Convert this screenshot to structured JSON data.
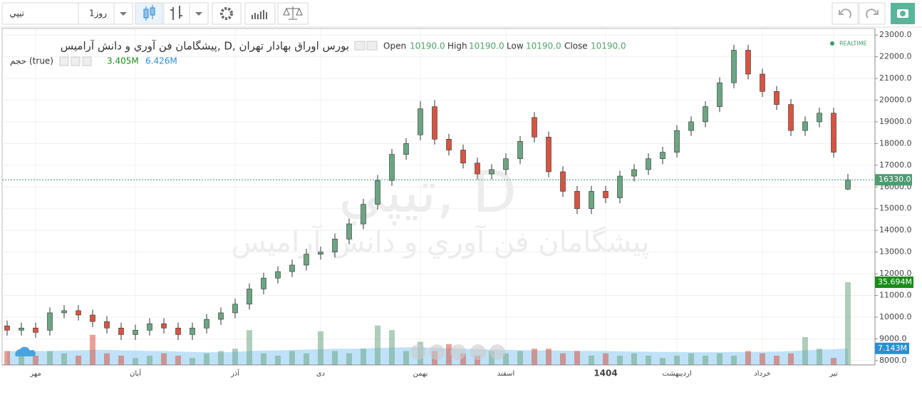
{
  "toolbar": {
    "symbol": "تيپي",
    "interval": "1روز"
  },
  "legend": {
    "title": "پيشگامان فن آوري و دانش آراميس, D, بورس اوراق بهادار تهران",
    "open_label": "Open",
    "open": "10190.0",
    "high_label": "High",
    "high": "10190.0",
    "low_label": "Low",
    "low": "10190.0",
    "close_label": "Close",
    "close": "10190.0",
    "realtime": "REALTIME",
    "volume_title": "حجم (true)",
    "volume_value": "3.405M",
    "volume_ma_value": "6.426M"
  },
  "watermark": {
    "main": "تيپي, D",
    "sub": "پيشگامان فن آوري و دانش آراميس"
  },
  "chart_data": {
    "type": "candlestick",
    "categories": [
      null,
      null,
      "مهر",
      null,
      null,
      null,
      null,
      null,
      null,
      "آبان",
      null,
      null,
      null,
      null,
      null,
      null,
      "آذر",
      null,
      null,
      null,
      null,
      null,
      "دی",
      null,
      null,
      null,
      null,
      null,
      null,
      "بهمن",
      null,
      null,
      null,
      null,
      null,
      "اسفند",
      null,
      null,
      null,
      null,
      null,
      null,
      "1404",
      null,
      null,
      null,
      null,
      "اردیبهشت",
      null,
      null,
      null,
      null,
      null,
      "خرداد",
      null,
      null,
      null,
      null,
      "تیر",
      null
    ],
    "open": [
      9600,
      9400,
      9500,
      9400,
      10200,
      10300,
      10100,
      9800,
      9500,
      9200,
      9400,
      9700,
      9500,
      9200,
      9500,
      9900,
      10200,
      10600,
      11300,
      11800,
      12100,
      12400,
      12900,
      13000,
      13600,
      14300,
      15200,
      16300,
      17500,
      18400,
      19700,
      18200,
      17700,
      17100,
      16600,
      16800,
      17300,
      19200,
      18300,
      16700,
      15800,
      15000,
      15800,
      15500,
      16500,
      16800,
      17300,
      17600,
      18600,
      19000,
      19700,
      20800,
      22300,
      21200,
      20400,
      19800,
      18600,
      19000,
      19400,
      15900
    ],
    "high": [
      9850,
      9750,
      9750,
      10450,
      10550,
      10550,
      10350,
      10050,
      9750,
      9650,
      9950,
      9950,
      9750,
      9750,
      10150,
      10450,
      10850,
      11550,
      12050,
      12350,
      12650,
      13150,
      13250,
      13850,
      14550,
      15450,
      16550,
      17750,
      18250,
      19950,
      20000,
      18450,
      17950,
      17350,
      17050,
      17550,
      18350,
      19450,
      18550,
      16950,
      16050,
      16050,
      16050,
      16750,
      17050,
      17550,
      17850,
      18850,
      19250,
      19950,
      21050,
      22550,
      22550,
      21450,
      20650,
      20050,
      19250,
      19650,
      19650,
      16600
    ],
    "low": [
      9150,
      9150,
      9050,
      9150,
      9950,
      9850,
      9550,
      9250,
      8950,
      8950,
      9150,
      9250,
      8950,
      8950,
      9250,
      9650,
      9950,
      10350,
      11050,
      11550,
      11850,
      12150,
      12650,
      12750,
      13350,
      14050,
      14950,
      16050,
      17250,
      18150,
      17950,
      17450,
      16850,
      16350,
      16350,
      16550,
      17050,
      18050,
      16450,
      15550,
      14750,
      14750,
      15250,
      15250,
      16250,
      16550,
      17050,
      17350,
      18350,
      18750,
      19450,
      20550,
      20950,
      20150,
      19550,
      18350,
      18350,
      18750,
      17350,
      15850
    ],
    "close": [
      9400,
      9500,
      9300,
      10200,
      10300,
      10100,
      9800,
      9500,
      9200,
      9400,
      9700,
      9500,
      9200,
      9500,
      9900,
      10200,
      10600,
      11300,
      11800,
      12100,
      12400,
      12900,
      13000,
      13600,
      14300,
      15200,
      16300,
      17500,
      18000,
      19600,
      18200,
      17700,
      17100,
      16600,
      16800,
      17300,
      18100,
      18300,
      16700,
      15800,
      15000,
      15800,
      15500,
      16500,
      16800,
      17300,
      17600,
      18600,
      19000,
      19700,
      20800,
      22300,
      21200,
      20400,
      19800,
      18600,
      19000,
      19400,
      17600,
      16330
    ],
    "volume": [
      6,
      5,
      4,
      6,
      5,
      4,
      13,
      5,
      4,
      3,
      4,
      5,
      4,
      3,
      5,
      6,
      7,
      15,
      5,
      4,
      6,
      5,
      14.5,
      6,
      5,
      7,
      17,
      15,
      6,
      10,
      6,
      9,
      5,
      4,
      6,
      5,
      6,
      7,
      7,
      5,
      6,
      4,
      5,
      4,
      5,
      4,
      3,
      4,
      5,
      4,
      5,
      4,
      6,
      5,
      4,
      5,
      12,
      7,
      3,
      35.694
    ],
    "volume_ma": [
      6,
      6,
      6,
      6,
      6.2,
      6.3,
      6.5,
      6.5,
      6.3,
      6.2,
      6,
      6,
      5.8,
      5.6,
      5.5,
      5.5,
      5.6,
      6,
      6.2,
      6.3,
      6.5,
      6.6,
      6.8,
      7,
      7,
      7.1,
      7.3,
      7.5,
      7.6,
      7.6,
      7.4,
      7.2,
      7,
      6.8,
      6.6,
      6.5,
      6.4,
      6.3,
      6.3,
      6.2,
      6.1,
      6,
      6,
      5.9,
      5.8,
      5.7,
      5.6,
      5.6,
      5.5,
      5.5,
      5.5,
      5.6,
      5.6,
      5.7,
      5.8,
      6,
      6.3,
      6.6,
      6.8,
      7.143
    ],
    "last_price_label": "16330.0",
    "last_volume_label": "35.694M",
    "volume_ma_label": "7.143M",
    "up_color": "#6ba583",
    "down_color": "#d75442",
    "ma_color": "#a9d8f5",
    "ylim": [
      7800,
      23300
    ],
    "volume_lim": [
      0,
      40
    ],
    "yticks": [
      {
        "value": 8000,
        "label": "8000.0"
      },
      {
        "value": 9000,
        "label": "9000.0"
      },
      {
        "value": 10000,
        "label": "10000.0"
      },
      {
        "value": 11000,
        "label": "11000.0"
      },
      {
        "value": 12000,
        "label": "12000.0"
      },
      {
        "value": 13000,
        "label": "13000.0"
      },
      {
        "value": 14000,
        "label": "14000.0"
      },
      {
        "value": 15000,
        "label": "15000.0"
      },
      {
        "value": 16000,
        "label": "16000.0"
      },
      {
        "value": 17000,
        "label": "17000.0"
      },
      {
        "value": 18000,
        "label": "18000.0"
      },
      {
        "value": 19000,
        "label": "19000.0"
      },
      {
        "value": 20000,
        "label": "20000.0"
      },
      {
        "value": 21000,
        "label": "21000.0"
      },
      {
        "value": 22000,
        "label": "22000.0"
      },
      {
        "value": 23000,
        "label": "23000.0"
      }
    ],
    "grid": true
  }
}
